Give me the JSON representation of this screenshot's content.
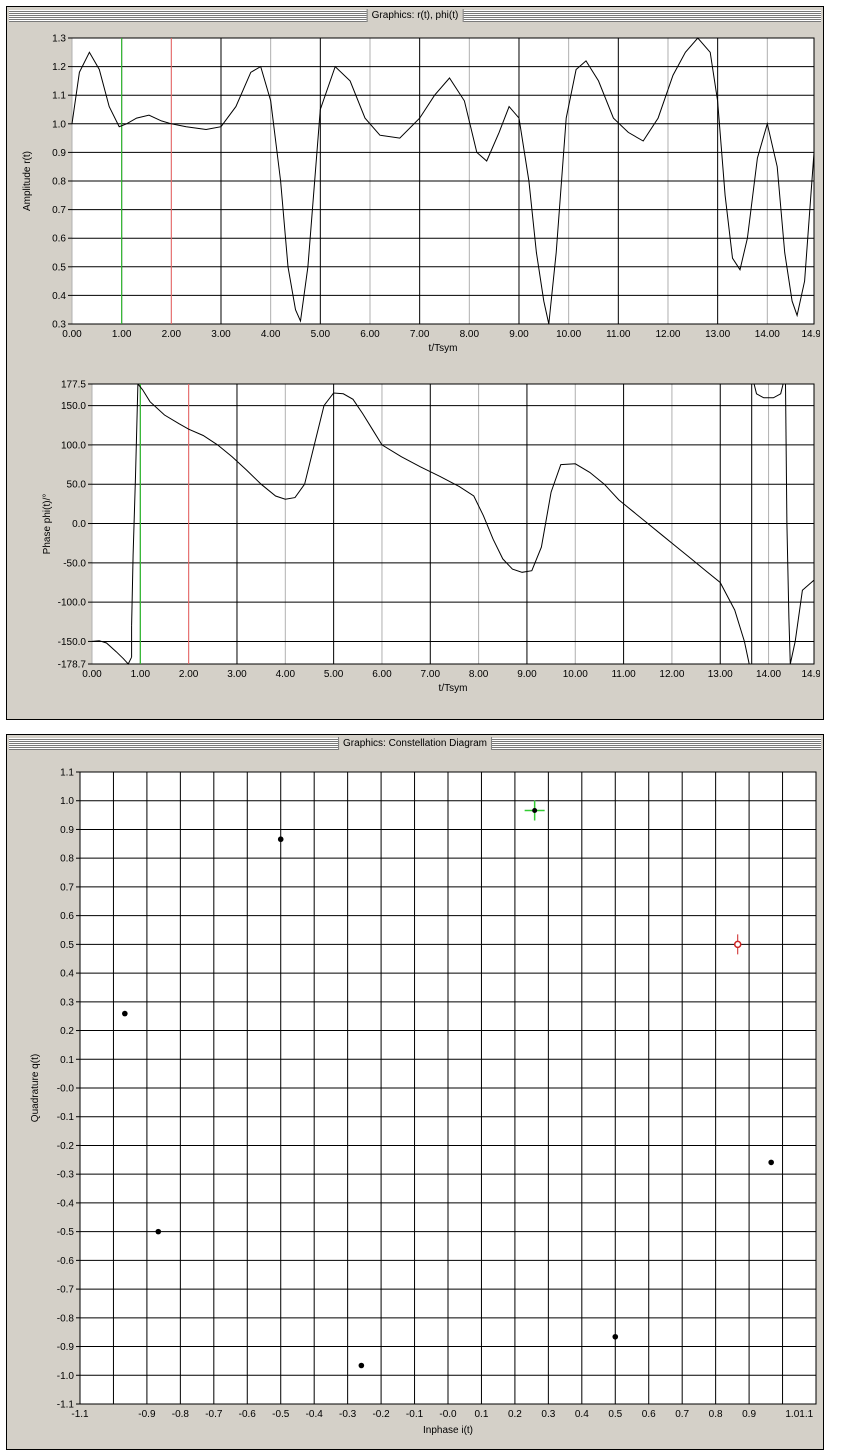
{
  "windows": {
    "top_title": "Graphics: r(t), phi(t)",
    "bottom_title": "Graphics: Constellation Diagram"
  },
  "chart_data": [
    {
      "type": "line",
      "xlabel": "t/Tsym",
      "ylabel": "Amplitude r(t)",
      "xlim": [
        0,
        14.94
      ],
      "ylim": [
        0.3,
        1.3
      ],
      "x_ticks": [
        "0.00",
        "1.00",
        "2.00",
        "3.00",
        "4.00",
        "5.00",
        "6.00",
        "7.00",
        "8.00",
        "9.00",
        "10.00",
        "11.00",
        "12.00",
        "13.00",
        "14.00",
        "14.94"
      ],
      "y_ticks": [
        "0.3",
        "0.4",
        "0.5",
        "0.6",
        "0.7",
        "0.8",
        "0.9",
        "1.0",
        "1.1",
        "1.2",
        "1.3"
      ],
      "markers": [
        {
          "x": 1.0,
          "color": "#33cc33"
        },
        {
          "x": 2.0,
          "color": "#ee6666"
        }
      ],
      "series": [
        {
          "x": [
            0,
            0.15,
            0.35,
            0.55,
            0.75,
            0.95,
            1.1,
            1.3,
            1.55,
            1.8,
            2.0,
            2.3,
            2.7,
            3.0,
            3.3,
            3.6,
            3.8,
            4.0,
            4.2,
            4.35,
            4.5,
            4.6,
            4.75,
            5.0,
            5.3,
            5.6,
            5.9,
            6.2,
            6.6,
            7.0,
            7.3,
            7.6,
            7.9,
            8.15,
            8.35,
            8.6,
            8.8,
            9.0,
            9.2,
            9.35,
            9.5,
            9.6,
            9.75,
            9.95,
            10.15,
            10.35,
            10.6,
            10.9,
            11.2,
            11.5,
            11.8,
            12.1,
            12.35,
            12.6,
            12.85,
            13.0,
            13.15,
            13.3,
            13.45,
            13.6,
            13.8,
            14.0,
            14.2,
            14.35,
            14.5,
            14.6,
            14.75,
            14.94
          ],
          "y": [
            1.0,
            1.18,
            1.25,
            1.19,
            1.06,
            0.99,
            1.0,
            1.02,
            1.03,
            1.01,
            1.0,
            0.99,
            0.98,
            0.99,
            1.06,
            1.18,
            1.2,
            1.08,
            0.8,
            0.5,
            0.35,
            0.31,
            0.5,
            1.05,
            1.2,
            1.15,
            1.02,
            0.96,
            0.95,
            1.02,
            1.1,
            1.16,
            1.08,
            0.9,
            0.87,
            0.97,
            1.06,
            1.02,
            0.8,
            0.55,
            0.38,
            0.3,
            0.55,
            1.02,
            1.19,
            1.22,
            1.15,
            1.02,
            0.97,
            0.94,
            1.02,
            1.17,
            1.25,
            1.3,
            1.25,
            1.08,
            0.75,
            0.53,
            0.49,
            0.6,
            0.88,
            1.0,
            0.85,
            0.55,
            0.38,
            0.33,
            0.45,
            0.9
          ]
        }
      ]
    },
    {
      "type": "line",
      "xlabel": "t/Tsym",
      "ylabel": "Phase phi(t)/°",
      "xlim": [
        0,
        14.94
      ],
      "ylim": [
        -178.7,
        177.5
      ],
      "x_ticks": [
        "0.00",
        "1.00",
        "2.00",
        "3.00",
        "4.00",
        "5.00",
        "6.00",
        "7.00",
        "8.00",
        "9.00",
        "10.00",
        "11.00",
        "12.00",
        "13.00",
        "14.00",
        "14.94"
      ],
      "y_ticks": [
        "-178.7",
        "-150.0",
        "-100.0",
        "-50.0",
        "0.0",
        "50.0",
        "100.0",
        "150.0",
        "177.5"
      ],
      "markers": [
        {
          "x": 1.0,
          "color": "#33cc33"
        },
        {
          "x": 2.0,
          "color": "#ee6666"
        }
      ],
      "series": [
        {
          "segments": [
            {
              "x": [
                0,
                0.15,
                0.3,
                0.5,
                0.65,
                0.75,
                0.82
              ],
              "y": [
                -150,
                -149,
                -152,
                -163,
                -172,
                -178.7,
                -170
              ]
            },
            {
              "x": [
                0.82,
                0.82
              ],
              "y": [
                -170,
                -130
              ]
            },
            {
              "x": [
                0.82,
                0.85,
                0.9,
                0.95
              ],
              "y": [
                -130,
                -40,
                60,
                177.5
              ]
            },
            {
              "x": [
                0.95,
                1.05,
                1.2,
                1.5,
                1.8,
                2.0,
                2.3,
                2.6,
                2.9,
                3.2,
                3.5,
                3.8,
                4.0,
                4.2,
                4.4,
                4.6,
                4.8,
                5.0,
                5.2,
                5.4,
                5.6,
                5.8,
                6.0,
                6.4,
                6.8,
                7.2,
                7.6,
                7.9,
                8.1,
                8.3,
                8.5,
                8.7,
                8.9,
                9.1,
                9.3,
                9.5,
                9.7,
                10.0,
                10.3,
                10.6,
                10.9,
                11.2,
                11.5,
                11.8,
                12.1,
                12.4,
                12.7,
                13.0,
                13.3,
                13.5,
                13.6
              ],
              "y": [
                177.5,
                170,
                155,
                138,
                127,
                120,
                112,
                100,
                85,
                68,
                50,
                35,
                31,
                33,
                50,
                100,
                150,
                166,
                165,
                158,
                140,
                120,
                100,
                85,
                72,
                60,
                47,
                35,
                10,
                -20,
                -45,
                -58,
                -62,
                -60,
                -30,
                40,
                75,
                76,
                65,
                50,
                30,
                15,
                0,
                -15,
                -30,
                -45,
                -60,
                -75,
                -110,
                -150,
                -178.7
              ]
            },
            {
              "x": [
                13.65,
                13.65
              ],
              "y": [
                -178.7,
                177.5
              ]
            },
            {
              "x": [
                13.7,
                13.75,
                13.9,
                14.1,
                14.25,
                14.3
              ],
              "y": [
                177.5,
                165,
                160,
                160,
                165,
                177.5
              ]
            },
            {
              "x": [
                14.35,
                14.38
              ],
              "y": [
                177.5,
                0
              ]
            },
            {
              "x": [
                14.38,
                14.42,
                14.45,
                14.55,
                14.7,
                14.94
              ],
              "y": [
                0,
                -120,
                -178.7,
                -150,
                -85,
                -72
              ]
            }
          ]
        }
      ]
    },
    {
      "type": "scatter",
      "xlabel": "Inphase i(t)",
      "ylabel": "Quadrature q(t)",
      "xlim": [
        -1.1,
        1.1
      ],
      "ylim": [
        -1.1,
        1.1
      ],
      "x_ticks": [
        "-1.1",
        "-0.9",
        "-0.8",
        "-0.7",
        "-0.6",
        "-0.5",
        "-0.4",
        "-0.3",
        "-0.2",
        "-0.1",
        "-0.0",
        "0.1",
        "0.2",
        "0.3",
        "0.4",
        "0.5",
        "0.6",
        "0.7",
        "0.8",
        "0.9",
        "1.01.1"
      ],
      "y_ticks": [
        "1.1",
        "1.0",
        "0.9",
        "0.8",
        "0.7",
        "0.6",
        "0.5",
        "0.4",
        "0.3",
        "0.2",
        "0.1",
        "-0.0",
        "-0.1",
        "-0.2",
        "-0.3",
        "-0.4",
        "-0.5",
        "-0.6",
        "-0.7",
        "-0.8",
        "-0.9",
        "-1.0",
        "-1.1"
      ],
      "points": [
        {
          "x": -0.966,
          "y": 0.259
        },
        {
          "x": -0.866,
          "y": -0.5
        },
        {
          "x": -0.5,
          "y": 0.866
        },
        {
          "x": -0.259,
          "y": -0.966
        },
        {
          "x": 0.259,
          "y": 0.966,
          "marker": "cross",
          "color": "#33cc33"
        },
        {
          "x": 0.5,
          "y": -0.866
        },
        {
          "x": 0.866,
          "y": 0.5,
          "marker": "circle",
          "color": "#cc2222"
        },
        {
          "x": 0.966,
          "y": -0.259
        }
      ]
    }
  ]
}
